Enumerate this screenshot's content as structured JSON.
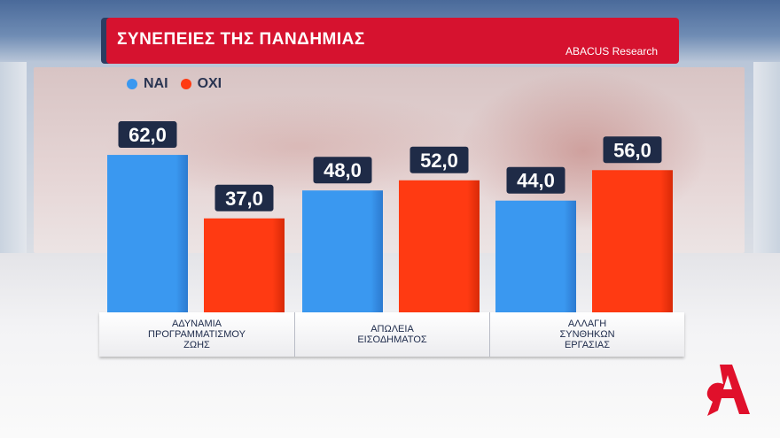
{
  "header": {
    "title": "ΣΥΝΕΠΕΙΕΣ ΤΗΣ ΠΑΝΔΗΜΙΑΣ",
    "source": "ABACUS Research"
  },
  "legend": [
    {
      "label": "ΝΑΙ",
      "color": "#3a98f0"
    },
    {
      "label": "ΟΧΙ",
      "color": "#ff3a12"
    }
  ],
  "chart_data": {
    "type": "bar",
    "categories": [
      "ΑΔΥΝΑΜΙΑ\nΠΡΟΓΡΑΜΜΑΤΙΣΜΟΥ\nΖΩΗΣ",
      "ΑΠΩΛΕΙΑ\nΕΙΣΟΔΗΜΑΤΟΣ",
      "ΑΛΛΑΓΗ\nΣΥΝΘΗΚΩΝ\nΕΡΓΑΣΙΑΣ"
    ],
    "series": [
      {
        "name": "ΝΑΙ",
        "values": [
          62.0,
          48.0,
          44.0
        ],
        "labels": [
          "62,0",
          "48,0",
          "44,0"
        ],
        "color": "#3a98f0"
      },
      {
        "name": "ΟΧΙ",
        "values": [
          37.0,
          52.0,
          56.0
        ],
        "labels": [
          "37,0",
          "52,0",
          "56,0"
        ],
        "color": "#ff3a12"
      }
    ],
    "title": "ΣΥΝΕΠΕΙΕΣ ΤΗΣ ΠΑΝΔΗΜΙΑΣ",
    "xlabel": "",
    "ylabel": "",
    "ylim": [
      0,
      100
    ],
    "grid": false,
    "legend_position": "top-left"
  },
  "colors": {
    "header_bg": "#d6122f",
    "label_box_bg": "#1f2b47",
    "logo": "#e0102b"
  },
  "logo_icon": "alpha-logo"
}
